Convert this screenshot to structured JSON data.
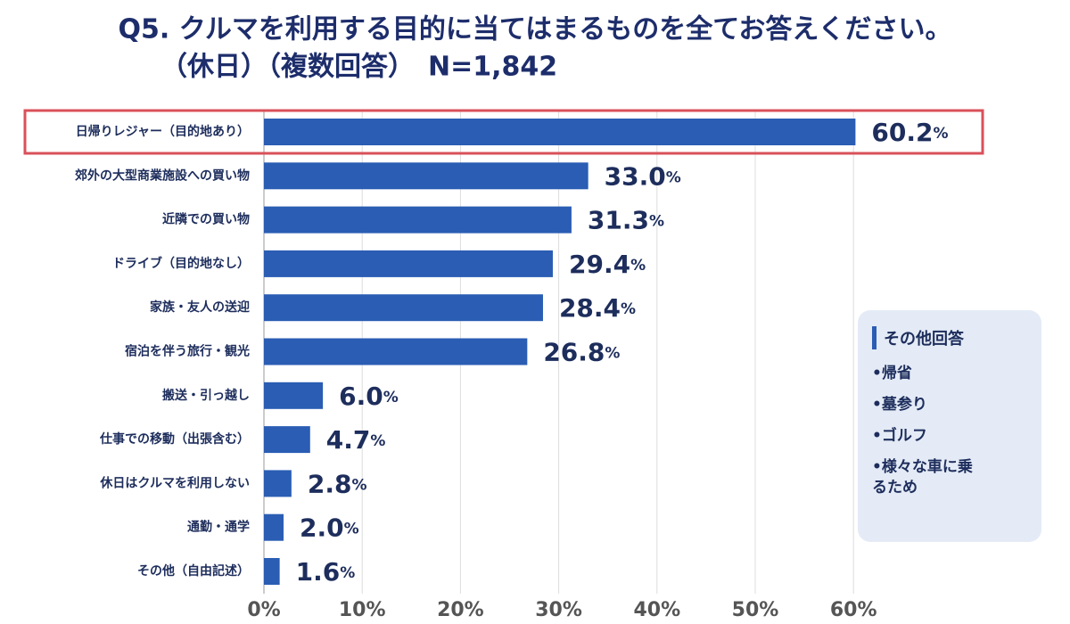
{
  "chart_data": {
    "type": "bar",
    "orientation": "horizontal",
    "title": "Q5. クルマを利用する目的に当てはまるものを全てお答えください。",
    "subtitle": "（休日）（複数回答）　N=1,842",
    "categories": [
      "日帰りレジャー（目的地あり）",
      "郊外の大型商業施設への買い物",
      "近隣での買い物",
      "ドライブ（目的地なし）",
      "家族・友人の送迎",
      "宿泊を伴う旅行・観光",
      "搬送・引っ越し",
      "仕事での移動（出張含む）",
      "休日はクルマを利用しない",
      "通勤・通学",
      "その他（自由記述）"
    ],
    "values": [
      60.2,
      33.0,
      31.3,
      29.4,
      28.4,
      26.8,
      6.0,
      4.7,
      2.8,
      2.0,
      1.6
    ],
    "value_labels": [
      "60.2%",
      "33.0%",
      "31.3%",
      "29.4%",
      "28.4%",
      "26.8%",
      "6.0%",
      "4.7%",
      "2.8%",
      "2.0%",
      "1.6%"
    ],
    "color": "#2a5db3",
    "xlim": [
      0,
      65
    ],
    "xticks": [
      {
        "value": 0,
        "label": "0%"
      },
      {
        "value": 10,
        "label": "10%"
      },
      {
        "value": 20,
        "label": "20%"
      },
      {
        "value": 30,
        "label": "30%"
      },
      {
        "value": 40,
        "label": "40%"
      },
      {
        "value": 50,
        "label": "50%"
      },
      {
        "value": 60,
        "label": "60%"
      }
    ],
    "grid": true,
    "annotation": {
      "title": "その他回答",
      "items": [
        "•帰省",
        "•墓参り",
        "•ゴルフ",
        "•様々な車に乗るため"
      ]
    }
  }
}
